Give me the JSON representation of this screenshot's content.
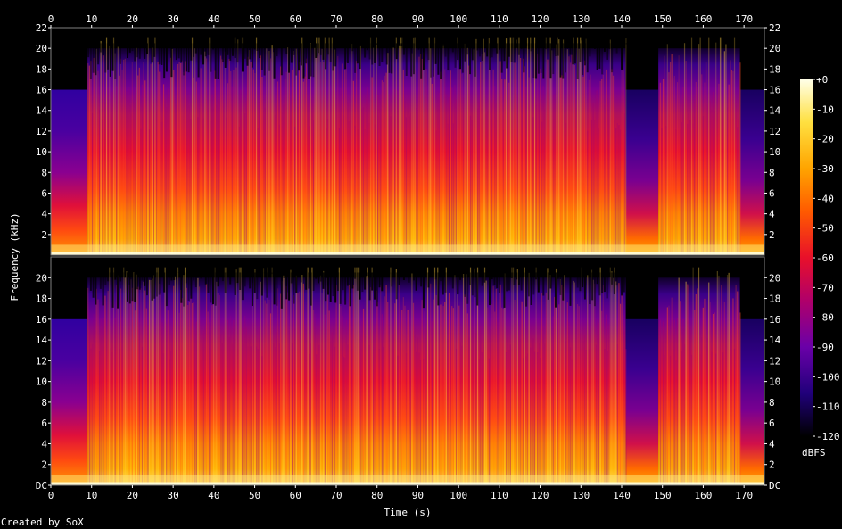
{
  "chart_data": {
    "type": "heatmap",
    "subtype": "spectrogram",
    "channels": 2,
    "xlabel": "Time (s)",
    "ylabel": "Frequency (kHz)",
    "xlim": [
      0,
      175
    ],
    "ylim": [
      0,
      22
    ],
    "x_ticks": [
      0,
      10,
      20,
      30,
      40,
      50,
      60,
      70,
      80,
      90,
      100,
      110,
      120,
      130,
      140,
      150,
      160,
      170
    ],
    "y_ticks_top": [
      "2",
      "4",
      "6",
      "8",
      "10",
      "12",
      "14",
      "16",
      "18",
      "20",
      "22"
    ],
    "y_ticks_bottom": [
      "DC",
      "2",
      "4",
      "6",
      "8",
      "10",
      "12",
      "14",
      "16",
      "18",
      "20"
    ],
    "colorbar": {
      "label": "dBFS",
      "range": [
        -120,
        0
      ],
      "ticks": [
        "+0",
        "-10",
        "-20",
        "-30",
        "-40",
        "-50",
        "-60",
        "-70",
        "-80",
        "-90",
        "-100",
        "-110",
        "-120"
      ]
    },
    "colormap": [
      "#000000",
      "#20007a",
      "#6a00a8",
      "#b0006a",
      "#e8102a",
      "#ff5a00",
      "#ffa400",
      "#ffe040",
      "#ffffe8"
    ],
    "grid": false,
    "footer": "Created by SoX"
  }
}
